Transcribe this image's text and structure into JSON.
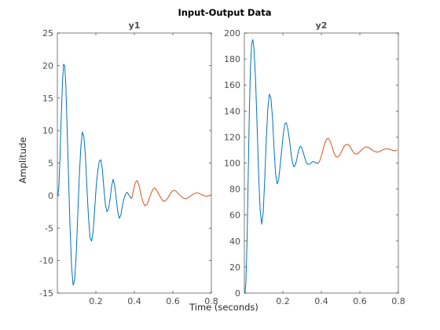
{
  "figure": {
    "title": "Input-Output Data",
    "xlabel": "Time (seconds)",
    "ylabel": "Amplitude"
  },
  "colors": {
    "series_a": "#0072BD",
    "series_b": "#D95319",
    "axes": "#262626",
    "ticks": "#4d4d4d"
  },
  "chart_data": [
    {
      "type": "line",
      "title": "y1",
      "xlim": [
        0,
        0.8
      ],
      "ylim": [
        -15,
        25
      ],
      "xticks": [
        0.2,
        0.4,
        0.6,
        0.8
      ],
      "yticks": [
        -15,
        -10,
        -5,
        0,
        5,
        10,
        15,
        20,
        25
      ],
      "series": [
        {
          "color": "#0072BD",
          "x": [
            0.003,
            0.008,
            0.014,
            0.02,
            0.026,
            0.032,
            0.038,
            0.044,
            0.05,
            0.058,
            0.066,
            0.074,
            0.082,
            0.09,
            0.098,
            0.106,
            0.114,
            0.122,
            0.13,
            0.138,
            0.146,
            0.154,
            0.162,
            0.17,
            0.178,
            0.186,
            0.194,
            0.202,
            0.21,
            0.218,
            0.226,
            0.234,
            0.242,
            0.25,
            0.258,
            0.266,
            0.274,
            0.282,
            0.29,
            0.298,
            0.306,
            0.314,
            0.322,
            0.33,
            0.338,
            0.346,
            0.354,
            0.362,
            0.37,
            0.378,
            0.386
          ],
          "y": [
            0,
            1.5,
            6,
            12,
            17,
            20.2,
            20,
            17,
            11,
            3,
            -5,
            -11,
            -13.8,
            -13,
            -9,
            -3,
            3,
            7.5,
            9.8,
            9,
            6,
            1,
            -3.5,
            -6.5,
            -7,
            -5.5,
            -2,
            1.5,
            3.8,
            5.3,
            5.5,
            4,
            1,
            -1.5,
            -2.5,
            -2,
            -0.5,
            1.5,
            2.5,
            1.5,
            -0.5,
            -2.5,
            -3.5,
            -3,
            -1.5,
            -0.5,
            0.2,
            0.5,
            0.2,
            -0.2,
            -0.5
          ]
        },
        {
          "color": "#D95319",
          "x": [
            0.386,
            0.395,
            0.405,
            0.415,
            0.425,
            0.435,
            0.445,
            0.455,
            0.465,
            0.475,
            0.485,
            0.495,
            0.505,
            0.515,
            0.525,
            0.535,
            0.545,
            0.555,
            0.565,
            0.575,
            0.585,
            0.595,
            0.605,
            0.615,
            0.625,
            0.635,
            0.645,
            0.655,
            0.665,
            0.675,
            0.685,
            0.695,
            0.705,
            0.715,
            0.725,
            0.735,
            0.745,
            0.755,
            0.765,
            0.775,
            0.785,
            0.795
          ],
          "y": [
            -0.5,
            0.8,
            2,
            2.3,
            1.5,
            0,
            -1,
            -1.6,
            -1.4,
            -0.7,
            0.2,
            0.9,
            1.2,
            0.9,
            0.3,
            -0.2,
            -0.7,
            -0.9,
            -0.7,
            -0.3,
            0.2,
            0.6,
            0.8,
            0.7,
            0.4,
            0.1,
            -0.2,
            -0.4,
            -0.5,
            -0.4,
            -0.2,
            0,
            0.2,
            0.35,
            0.4,
            0.35,
            0.2,
            0.05,
            -0.05,
            -0.1,
            -0.05,
            0.1
          ]
        }
      ]
    },
    {
      "type": "line",
      "title": "y2",
      "xlim": [
        0,
        0.8
      ],
      "ylim": [
        0,
        200
      ],
      "xticks": [
        0.2,
        0.4,
        0.6,
        0.8
      ],
      "yticks": [
        0,
        20,
        40,
        60,
        80,
        100,
        120,
        140,
        160,
        180,
        200
      ],
      "series": [
        {
          "color": "#0072BD",
          "x": [
            0.003,
            0.008,
            0.014,
            0.02,
            0.026,
            0.032,
            0.038,
            0.044,
            0.05,
            0.058,
            0.066,
            0.074,
            0.082,
            0.09,
            0.098,
            0.106,
            0.114,
            0.122,
            0.13,
            0.138,
            0.146,
            0.154,
            0.162,
            0.17,
            0.178,
            0.186,
            0.194,
            0.202,
            0.21,
            0.218,
            0.226,
            0.234,
            0.242,
            0.25,
            0.258,
            0.266,
            0.274,
            0.282,
            0.29,
            0.298,
            0.306,
            0.314,
            0.322,
            0.33,
            0.338,
            0.346,
            0.354,
            0.362,
            0.37,
            0.378,
            0.386
          ],
          "y": [
            0,
            8,
            40,
            90,
            140,
            175,
            192,
            195,
            188,
            165,
            130,
            92,
            64,
            53,
            62,
            88,
            118,
            142,
            153,
            150,
            135,
            112,
            92,
            84,
            87,
            98,
            110,
            122,
            130,
            131,
            126,
            118,
            108,
            100,
            97,
            99,
            104,
            110,
            113,
            112,
            108,
            104,
            100,
            99,
            99,
            100,
            101,
            101,
            100,
            100,
            100
          ]
        },
        {
          "color": "#D95319",
          "x": [
            0.386,
            0.395,
            0.405,
            0.415,
            0.425,
            0.435,
            0.445,
            0.455,
            0.465,
            0.475,
            0.485,
            0.495,
            0.505,
            0.515,
            0.525,
            0.535,
            0.545,
            0.555,
            0.565,
            0.575,
            0.585,
            0.595,
            0.605,
            0.615,
            0.625,
            0.635,
            0.645,
            0.655,
            0.665,
            0.675,
            0.685,
            0.695,
            0.705,
            0.715,
            0.725,
            0.735,
            0.745,
            0.755,
            0.765,
            0.775,
            0.785,
            0.795
          ],
          "y": [
            100,
            103,
            108,
            114,
            118,
            119,
            117,
            113,
            108,
            105,
            104.5,
            106,
            109,
            112,
            114,
            114.5,
            113.5,
            111,
            108.5,
            107,
            107,
            108,
            109.5,
            111,
            112,
            112.5,
            112,
            111,
            110,
            109,
            108.5,
            108.5,
            109,
            110,
            110.5,
            111,
            111,
            110.5,
            110,
            109.5,
            109.5,
            110
          ]
        }
      ]
    }
  ]
}
